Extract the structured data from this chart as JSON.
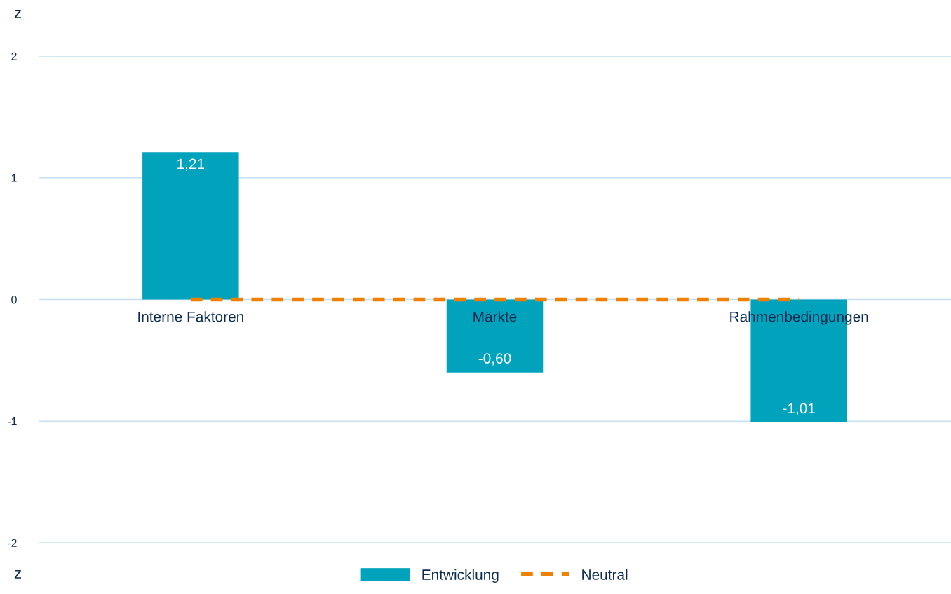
{
  "chart_data": {
    "type": "bar",
    "categories": [
      "Interne Faktoren",
      "Märkte",
      "Rahmenbedingungen"
    ],
    "series": [
      {
        "name": "Entwicklung",
        "color": "#00a3bb",
        "values": [
          1.21,
          -0.6,
          -1.01
        ],
        "value_labels": [
          "1,21",
          "-0,60",
          "-1,01"
        ]
      },
      {
        "name": "Neutral",
        "type": "line",
        "color": "#f08000",
        "line_style": "dashed",
        "values": [
          0,
          0,
          0
        ]
      }
    ],
    "ylim": [
      -2,
      2
    ],
    "yticks": [
      2,
      1,
      0,
      -1,
      -2
    ],
    "grid": "y",
    "legend": "bottom",
    "annotations": [
      "z",
      "z"
    ]
  }
}
